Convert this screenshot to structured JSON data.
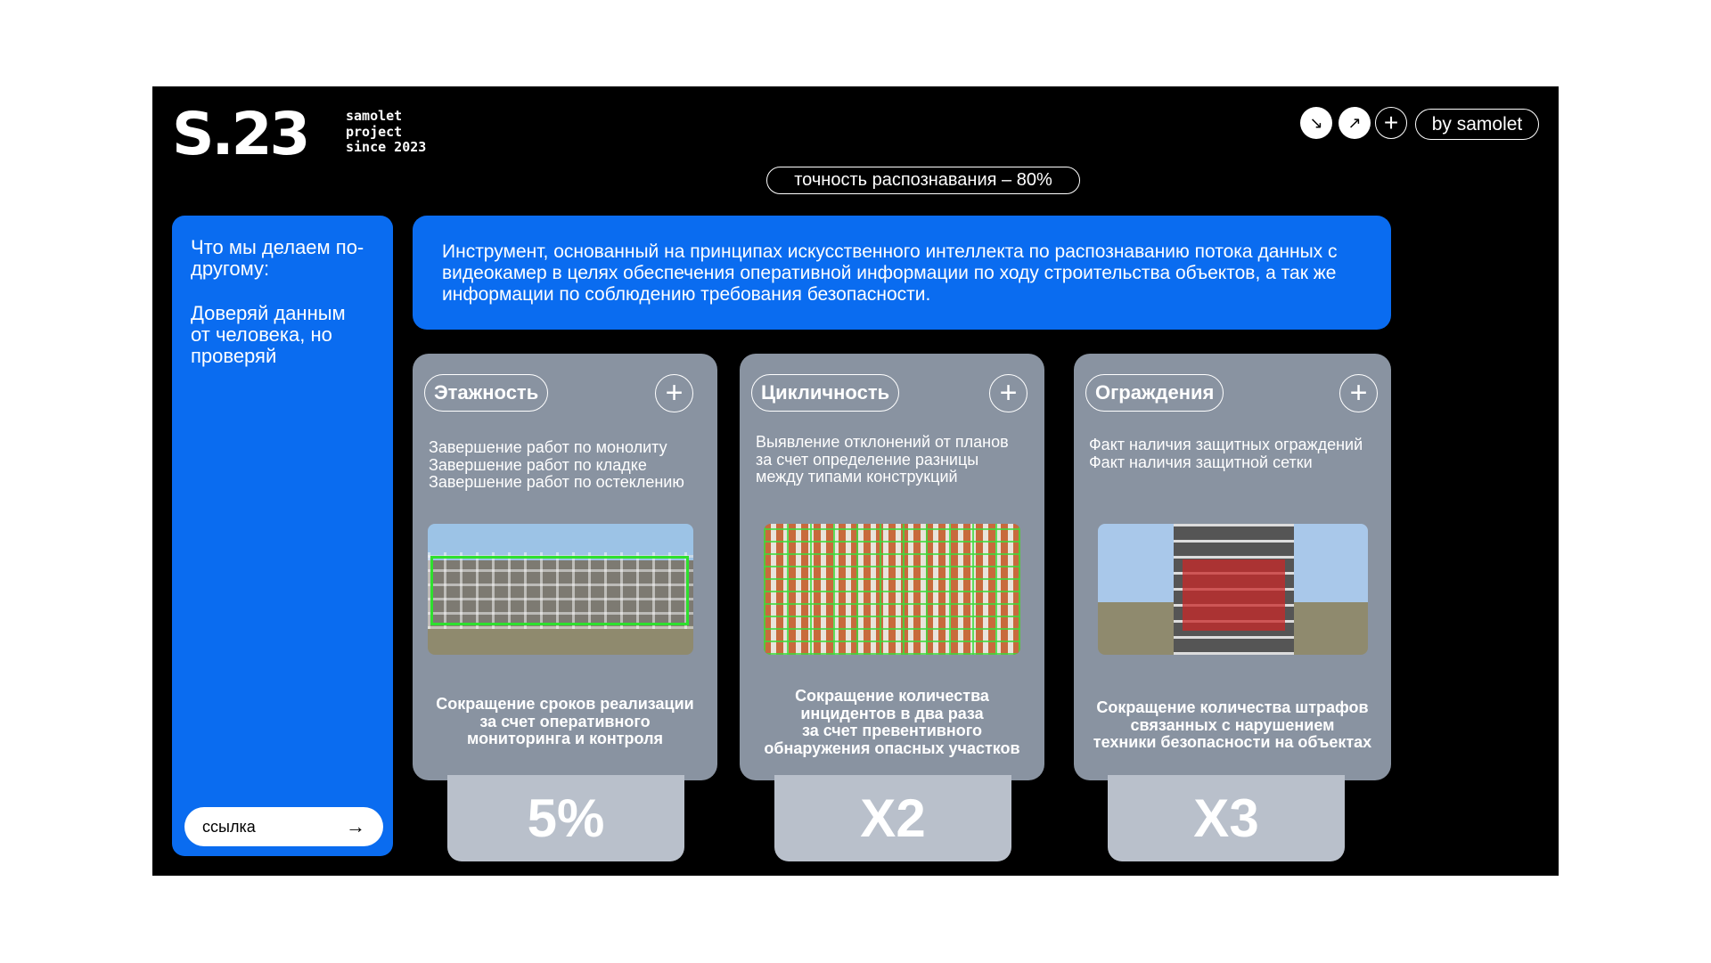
{
  "header": {
    "logo": "S.23",
    "tagline": [
      "samolet",
      "project",
      "since 2023"
    ],
    "by_label": "by samolet",
    "accuracy": "точность распознавания – 80%"
  },
  "icons": {
    "btn1": "arrow-down-right-icon",
    "btn2": "arrow-up-right-icon",
    "btn3": "plus-icon"
  },
  "sidebar": {
    "heading": "Что мы делаем по-другому:",
    "motto": "Доверяй данным от человека, но проверяй",
    "link_label": "ссылка"
  },
  "banner": {
    "text": "Инструмент, основанный на принципах искусственного интеллекта по распознаванию потока данных с видеокамер в целях обеспечения оперативной информации по ходу строительства объектов, а так же информации по соблюдению требования безопасности."
  },
  "cards": [
    {
      "title": "Этажность",
      "desc": "Завершение работ по монолиту\nЗавершение работ по кладке\nЗавершение работ по остеклению",
      "result": "Сокращение сроков реализации\nза счет оперативного\nмониторинга и контроля",
      "stat": "5%"
    },
    {
      "title": "Цикличность",
      "desc": "Выявление отклонений от планов\nза счет определение разницы\nмежду типами конструкций",
      "result": "Сокращение количества\nинцидентов в два раза\nза счет превентивного\nобнаружения опасных участков",
      "stat": "X2"
    },
    {
      "title": "Ограждения",
      "desc": "Факт наличия защитных ограждений\nФакт наличия защитной сетки",
      "result": "Сокращение количества штрафов\nсвязанных с нарушением\nтехники безопасности на объектах",
      "stat": "X3"
    }
  ],
  "colors": {
    "accent": "#0a6cf0",
    "card": "#8993a1",
    "stat": "#b9c0cb",
    "background": "#000000"
  }
}
